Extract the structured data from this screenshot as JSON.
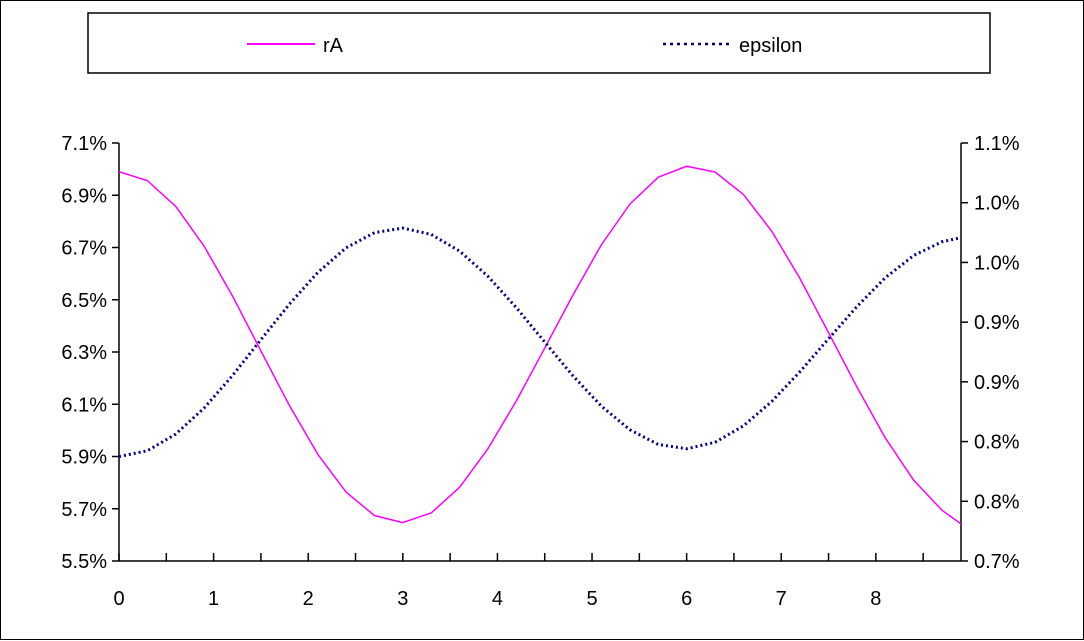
{
  "chart_data": {
    "type": "line",
    "title": "",
    "xlabel": "",
    "ylabel": "",
    "y2label": "",
    "grid": false,
    "legend": "top",
    "xlim": [
      0,
      8.9
    ],
    "ylim": [
      0.055,
      0.071
    ],
    "y2lim": [
      0.007,
      0.011
    ],
    "x_tick_labels": [
      "0",
      "1",
      "2",
      "3",
      "4",
      "5",
      "6",
      "7",
      "8"
    ],
    "x_tick_values": [
      0,
      1,
      2,
      3,
      4,
      5,
      6,
      7,
      8
    ],
    "x_minor_step": 0.5,
    "y_tick_labels": [
      "5.5%",
      "5.7%",
      "5.9%",
      "6.1%",
      "6.3%",
      "6.5%",
      "6.7%",
      "6.9%",
      "7.1%"
    ],
    "y_tick_values": [
      0.055,
      0.057,
      0.059,
      0.061,
      0.063,
      0.065,
      0.067,
      0.069,
      0.071
    ],
    "y2_tick_labels": [
      "0.7%",
      "0.8%",
      "0.8%",
      "0.9%",
      "0.9%",
      "1.0%",
      "1.0%",
      "1.1%"
    ],
    "y2_tick_values": [
      0.007,
      0.0075714,
      0.0081429,
      0.0087143,
      0.0092857,
      0.0098571,
      0.0104286,
      0.011
    ],
    "x": [
      0,
      0.3,
      0.6,
      0.9,
      1.2,
      1.5,
      1.8,
      2.1,
      2.4,
      2.7,
      3.0,
      3.3,
      3.6,
      3.9,
      4.2,
      4.5,
      4.8,
      5.1,
      5.4,
      5.7,
      6.0,
      6.3,
      6.6,
      6.9,
      7.2,
      7.5,
      7.8,
      8.1,
      8.4,
      8.7,
      8.9
    ],
    "series": [
      {
        "name": "rA",
        "axis": "left",
        "color": "#ff00ff",
        "dash": "solid",
        "values": [
          0.0699,
          0.06956,
          0.06857,
          0.06705,
          0.06514,
          0.06304,
          0.06096,
          0.05909,
          0.05764,
          0.05674,
          0.05647,
          0.05684,
          0.05782,
          0.0593,
          0.06113,
          0.06315,
          0.06519,
          0.06711,
          0.06866,
          0.06969,
          0.07011,
          0.06989,
          0.06903,
          0.06762,
          0.0658,
          0.06374,
          0.06166,
          0.05971,
          0.05809,
          0.05694,
          0.05642
        ]
      },
      {
        "name": "epsilon",
        "axis": "right",
        "color": "#000080",
        "dash": "dotted",
        "values": [
          0.008,
          0.008055,
          0.008215,
          0.008464,
          0.008775,
          0.009118,
          0.009457,
          0.00976,
          0.009997,
          0.010142,
          0.010186,
          0.010125,
          0.009966,
          0.009724,
          0.009424,
          0.009095,
          0.00877,
          0.008481,
          0.008256,
          0.008115,
          0.008074,
          0.008136,
          0.008293,
          0.008527,
          0.008814,
          0.009127,
          0.009435,
          0.009711,
          0.009924,
          0.010055,
          0.010094
        ]
      }
    ]
  }
}
